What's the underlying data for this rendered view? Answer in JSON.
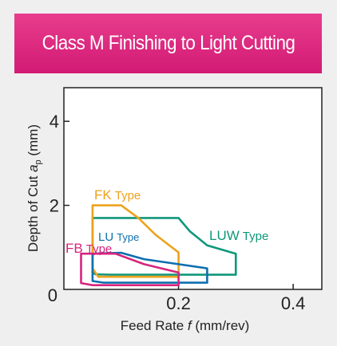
{
  "header": {
    "title": "Class M Finishing to Light Cutting"
  },
  "colors": {
    "banner": "#d8237c",
    "FK": "#eda21c",
    "LU": "#0d6fae",
    "LUW": "#10977b",
    "FB": "#d6247d",
    "type_text": "#0d6fae"
  },
  "chart_data": {
    "type": "area",
    "title": "Class M Finishing to Light Cutting",
    "xlabel_prefix": "Feed Rate ",
    "xlabel_italic": "f",
    "xlabel_suffix": " (mm/rev)",
    "ylabel_prefix": "Depth of Cut ",
    "ylabel_italic": "a",
    "ylabel_sub": "p",
    "ylabel_suffix": " (mm)",
    "xlim": [
      0,
      0.45
    ],
    "ylim": [
      0,
      4.8
    ],
    "xticks": [
      {
        "value": 0.2,
        "label": "0.2"
      },
      {
        "value": 0.4,
        "label": "0.4"
      }
    ],
    "yticks": [
      {
        "value": 2,
        "label": "2"
      },
      {
        "value": 4,
        "label": "4"
      }
    ],
    "origin_label": "0",
    "grid": false,
    "series": [
      {
        "name": "FK",
        "suffix": "Type",
        "color_key": "FK",
        "points": [
          [
            0.05,
            1.65
          ],
          [
            0.05,
            2.0
          ],
          [
            0.1,
            2.0
          ],
          [
            0.13,
            1.7
          ],
          [
            0.16,
            1.3
          ],
          [
            0.2,
            0.88
          ],
          [
            0.2,
            0.3
          ],
          [
            0.06,
            0.3
          ],
          [
            0.05,
            0.5
          ]
        ]
      },
      {
        "name": "LUW",
        "suffix": "Type",
        "color_key": "LUW",
        "points": [
          [
            0.05,
            0.4
          ],
          [
            0.05,
            1.7
          ],
          [
            0.2,
            1.7
          ],
          [
            0.22,
            1.38
          ],
          [
            0.25,
            1.05
          ],
          [
            0.3,
            0.85
          ],
          [
            0.3,
            0.35
          ],
          [
            0.08,
            0.35
          ],
          [
            0.055,
            0.36
          ]
        ]
      },
      {
        "name": "LU",
        "suffix": "Type",
        "color_key": "LU",
        "points": [
          [
            0.05,
            0.3
          ],
          [
            0.05,
            0.85
          ],
          [
            0.1,
            0.87
          ],
          [
            0.14,
            0.72
          ],
          [
            0.2,
            0.6
          ],
          [
            0.25,
            0.5
          ],
          [
            0.25,
            0.16
          ],
          [
            0.07,
            0.16
          ],
          [
            0.05,
            0.2
          ]
        ]
      },
      {
        "name": "FB",
        "suffix": "Type",
        "color_key": "FB",
        "points": [
          [
            0.03,
            0.3
          ],
          [
            0.03,
            0.85
          ],
          [
            0.09,
            0.85
          ],
          [
            0.14,
            0.6
          ],
          [
            0.2,
            0.4
          ],
          [
            0.2,
            0.1
          ],
          [
            0.05,
            0.1
          ],
          [
            0.03,
            0.15
          ]
        ]
      }
    ]
  }
}
